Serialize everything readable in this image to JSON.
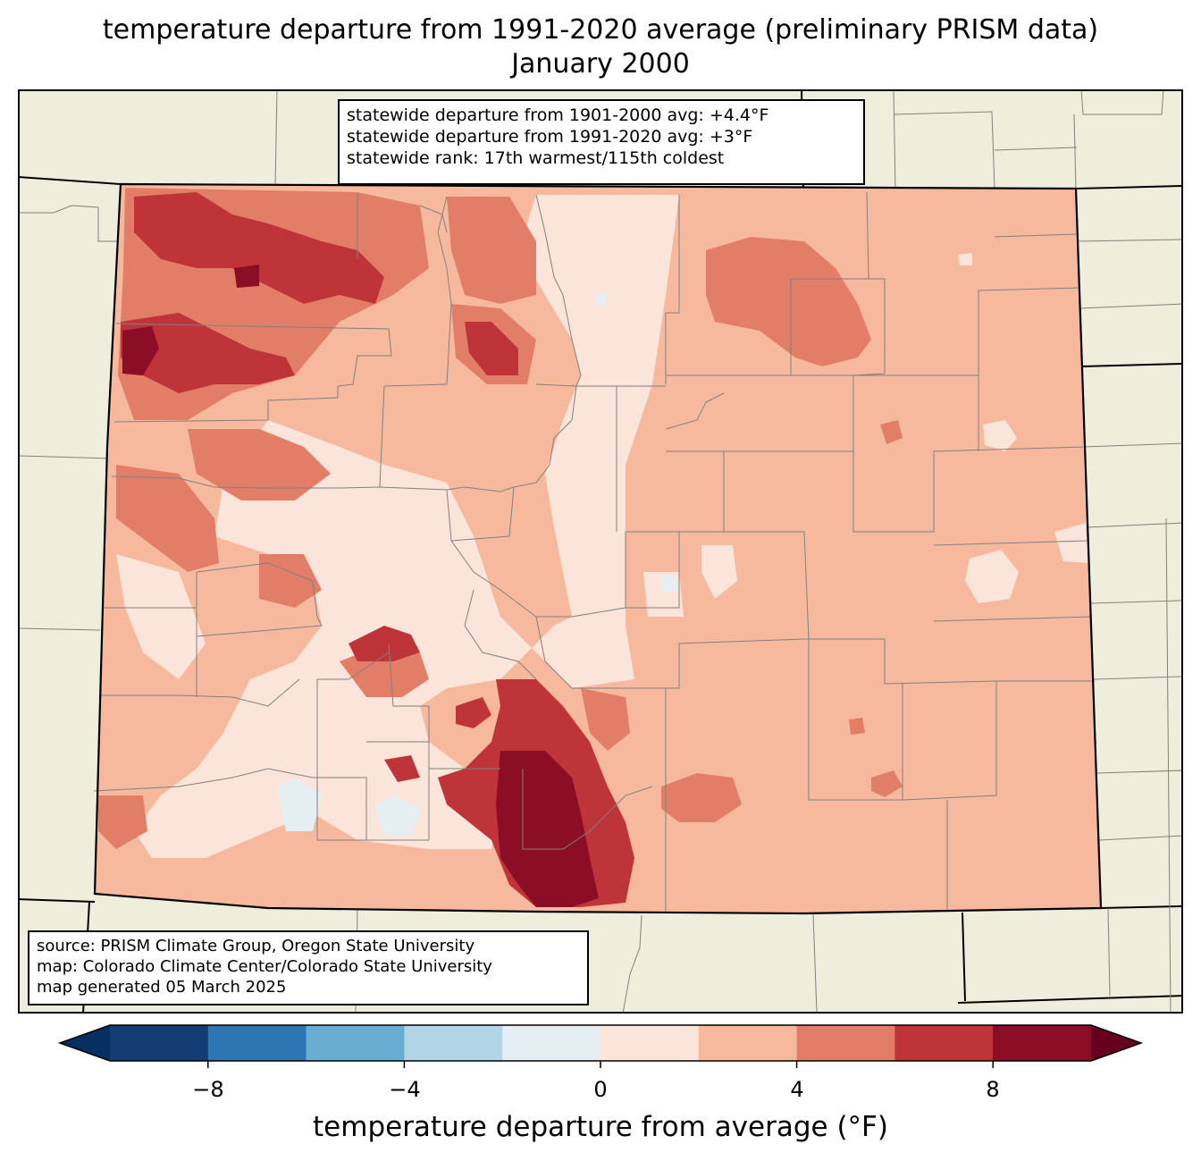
{
  "title": {
    "line1": "temperature departure from 1991-2020 average (preliminary PRISM data)",
    "line2": "January 2000"
  },
  "stats": {
    "line1": "statewide departure from 1901-2000 avg: +4.4°F",
    "line2": "statewide departure from 1991-2020 avg: +3°F",
    "line3": "statewide rank: 17th warmest/115th coldest"
  },
  "credits": {
    "line1": "source: PRISM Climate Group, Oregon State University",
    "line2": "map: Colorado Climate Center/Colorado State University",
    "line3": "map generated 05 March 2025"
  },
  "colorbar": {
    "label": "temperature departure from average (°F)",
    "ticks": [
      "−8",
      "−4",
      "0",
      "4",
      "8"
    ],
    "tick_values": [
      -8,
      -4,
      0,
      4,
      8
    ],
    "bounds": [
      -10,
      10
    ],
    "step": 2,
    "extend": "both",
    "colors": [
      "#133d72",
      "#2e75b4",
      "#69aed2",
      "#b1d5e7",
      "#e5eef3",
      "#fbe5da",
      "#f7b99d",
      "#e27e67",
      "#bf3438",
      "#8b0d26"
    ],
    "under_color": "#053061",
    "over_color": "#67001f"
  },
  "map": {
    "land_color": "#efeedc",
    "state_border_color": "#000000",
    "county_line_color": "#808080"
  }
}
